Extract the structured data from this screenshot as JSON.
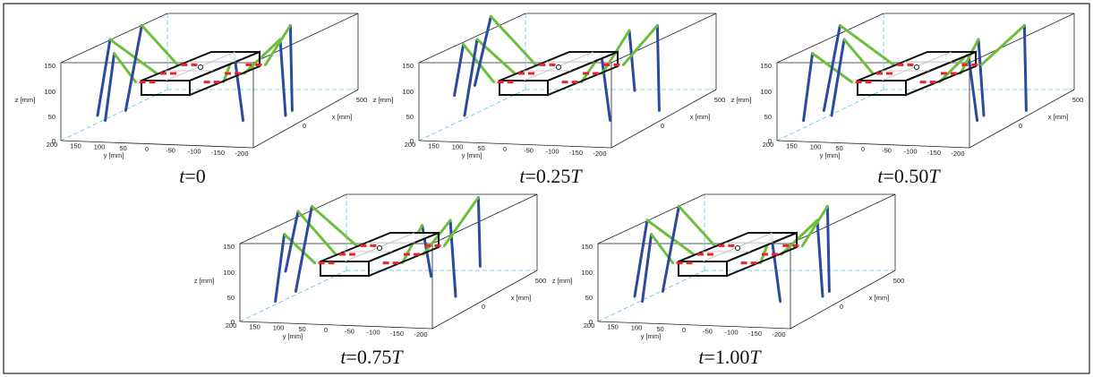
{
  "axes": {
    "z_label": "z [mm]",
    "y_label": "y [mm]",
    "x_label": "x [mm]",
    "z_ticks": [
      "0",
      "50",
      "100",
      "150"
    ],
    "y_ticks": [
      "200",
      "150",
      "100",
      "50",
      "0",
      "-50",
      "-100",
      "-150",
      "-200"
    ],
    "x_ticks": [
      "0",
      "500"
    ]
  },
  "panels": [
    {
      "caption": {
        "var": "t",
        "rest": "=0"
      }
    },
    {
      "caption": {
        "var": "t",
        "rest": "=0.25",
        "unit": "T"
      }
    },
    {
      "caption": {
        "var": "t",
        "rest": "=0.50",
        "unit": "T"
      }
    },
    {
      "caption": {
        "var": "t",
        "rest": "=0.75",
        "unit": "T"
      }
    },
    {
      "caption": {
        "var": "t",
        "rest": "=1.00",
        "unit": "T"
      }
    }
  ]
}
